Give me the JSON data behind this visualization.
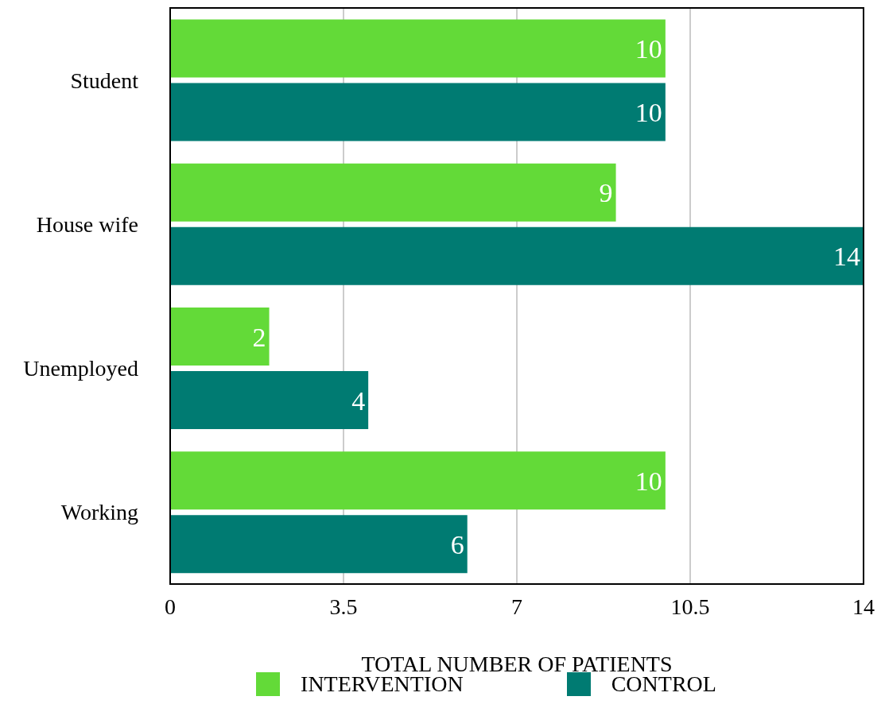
{
  "chart_data": {
    "type": "bar",
    "orientation": "horizontal",
    "xlabel": "TOTAL NUMBER OF PATIENTS",
    "categories": [
      "Student",
      "House wife",
      "Unemployed",
      "Working"
    ],
    "series": [
      {
        "name": "INTERVENTION",
        "color": "#63da38",
        "values": [
          10,
          9,
          2,
          10
        ]
      },
      {
        "name": "CONTROL",
        "color": "#007b72",
        "values": [
          10,
          14,
          4,
          6
        ]
      }
    ],
    "xlim": [
      0,
      14
    ],
    "xticks": [
      0,
      3.5,
      7,
      10.5,
      14
    ],
    "grid": "x",
    "legend": "bottom",
    "data_labels": true
  }
}
